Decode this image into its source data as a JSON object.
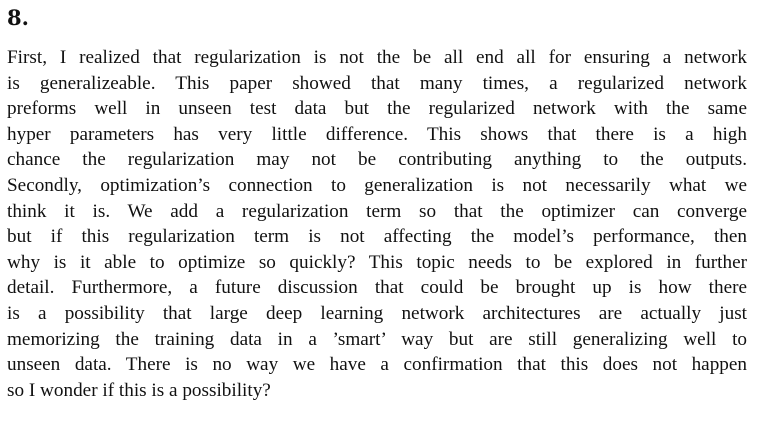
{
  "document": {
    "section_number": "8.",
    "paragraph_lines": [
      "First, I realized that regularization is not the be all end all for ensuring a network",
      "is generalizeable. This paper showed that many times, a regularized network",
      "preforms well in unseen test data but the regularized network with the same",
      "hyper parameters has very little difference. This shows that there is a high",
      "chance the regularization may not be contributing anything to the outputs.",
      "Secondly, optimization’s connection to generalization is not necessarily what we",
      "think it is. We add a regularization term so that the optimizer can converge",
      "but if this regularization term is not affecting the model’s performance, then",
      "why is it able to optimize so quickly? This topic needs to be explored in further",
      "detail. Furthermore, a future discussion that could be brought up is how there",
      "is a possibility that large deep learning network architectures are actually just",
      "memorizing the training data in a ’smart’ way but are still generalizing well to",
      "unseen data. There is no way we have a confirmation that this does not happen",
      "so I wonder if this is a possibility?"
    ]
  }
}
